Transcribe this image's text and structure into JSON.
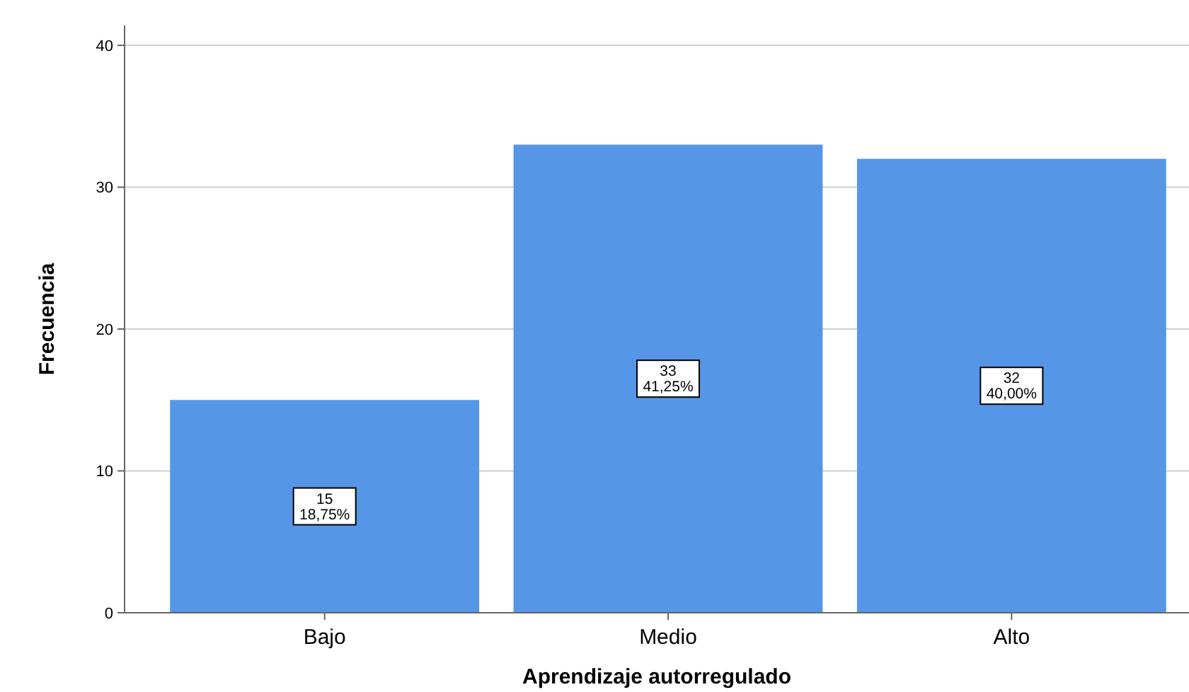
{
  "chart_data": {
    "type": "bar",
    "xlabel": "Aprendizaje autorregulado",
    "ylabel": "Frecuencia",
    "categories": [
      "Bajo",
      "Medio",
      "Alto"
    ],
    "values": [
      15,
      33,
      32
    ],
    "value_labels": [
      "15\n18,75%",
      "33\n41,25%",
      "32\n40,00%"
    ],
    "color": "#5596e6",
    "ylim": [
      0,
      41.4
    ],
    "yticks": [
      0,
      10,
      20,
      30,
      40
    ],
    "grid": "y"
  }
}
